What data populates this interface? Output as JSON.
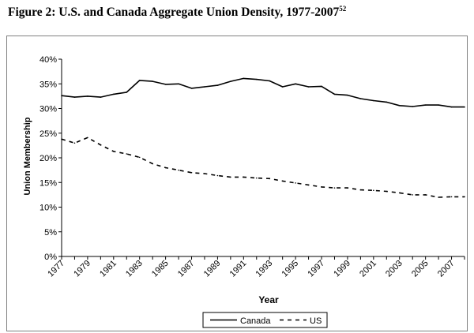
{
  "figure": {
    "title": "Figure 2: U.S. and Canada Aggregate Union Density, 1977-2007",
    "footnote": "52"
  },
  "chart_data": {
    "type": "line",
    "title": "",
    "xlabel": "Year",
    "ylabel": "Union Membership",
    "ylim": [
      0,
      40
    ],
    "xlim": [
      1977,
      2008
    ],
    "y_tick_labels": [
      "0%",
      "5%",
      "10%",
      "15%",
      "20%",
      "25%",
      "30%",
      "35%",
      "40%"
    ],
    "x_tick_labels": [
      "1977",
      "1979",
      "1981",
      "1983",
      "1985",
      "1987",
      "1989",
      "1991",
      "1993",
      "1995",
      "1997",
      "1999",
      "2001",
      "2003",
      "2005",
      "2007"
    ],
    "grid": false,
    "legend_position": "bottom",
    "x": [
      1977,
      1978,
      1979,
      1980,
      1981,
      1982,
      1983,
      1984,
      1985,
      1986,
      1987,
      1988,
      1989,
      1990,
      1991,
      1992,
      1993,
      1994,
      1995,
      1996,
      1997,
      1998,
      1999,
      2000,
      2001,
      2002,
      2003,
      2004,
      2005,
      2006,
      2007,
      2008
    ],
    "series": [
      {
        "name": "Canada",
        "style": "solid",
        "color": "#000000",
        "values": [
          32.6,
          32.3,
          32.5,
          32.3,
          32.9,
          33.3,
          35.7,
          35.5,
          34.9,
          35.0,
          34.1,
          34.4,
          34.7,
          35.5,
          36.1,
          35.9,
          35.6,
          34.4,
          35.0,
          34.4,
          34.5,
          32.9,
          32.7,
          32.0,
          31.6,
          31.3,
          30.6,
          30.4,
          30.7,
          30.7,
          30.3,
          30.3
        ]
      },
      {
        "name": "US",
        "style": "dashed",
        "color": "#000000",
        "values": [
          23.8,
          23.0,
          24.1,
          22.6,
          21.3,
          20.8,
          20.1,
          18.8,
          18.0,
          17.5,
          17.0,
          16.8,
          16.4,
          16.1,
          16.1,
          15.9,
          15.8,
          15.3,
          14.9,
          14.5,
          14.1,
          13.9,
          13.9,
          13.5,
          13.4,
          13.2,
          12.9,
          12.5,
          12.5,
          12.0,
          12.1,
          12.1
        ]
      }
    ]
  },
  "legend": {
    "canada_label": "Canada",
    "us_label": "US"
  }
}
